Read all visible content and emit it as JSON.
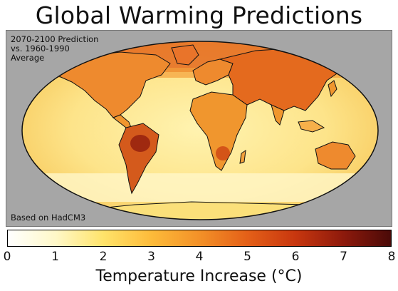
{
  "title": "Global Warming Predictions",
  "map": {
    "projection": "Mollweide",
    "subtitle_lines": [
      "2070-2100 Prediction",
      "vs. 1960-1990",
      "Average"
    ],
    "source_note": "Based on HadCM3"
  },
  "colorbar": {
    "min": 0,
    "max": 8,
    "ticks": [
      "0",
      "1",
      "2",
      "3",
      "4",
      "5",
      "6",
      "7",
      "8"
    ],
    "label": "Temperature Increase (°C)",
    "stops": [
      {
        "value": 0,
        "color": "#ffffff"
      },
      {
        "value": 1,
        "color": "#fff8c8"
      },
      {
        "value": 2,
        "color": "#ffe36a"
      },
      {
        "value": 3,
        "color": "#fdbb3a"
      },
      {
        "value": 4,
        "color": "#f39128"
      },
      {
        "value": 5,
        "color": "#e46018"
      },
      {
        "value": 6,
        "color": "#c8370f"
      },
      {
        "value": 7,
        "color": "#8e1a0c"
      },
      {
        "value": 8,
        "color": "#4a0a08"
      }
    ]
  },
  "colors": {
    "panel_background": "#a6a6a6",
    "ocean_base": "#fde98a",
    "land_warm": "#f08a2c",
    "outline": "#111111"
  }
}
